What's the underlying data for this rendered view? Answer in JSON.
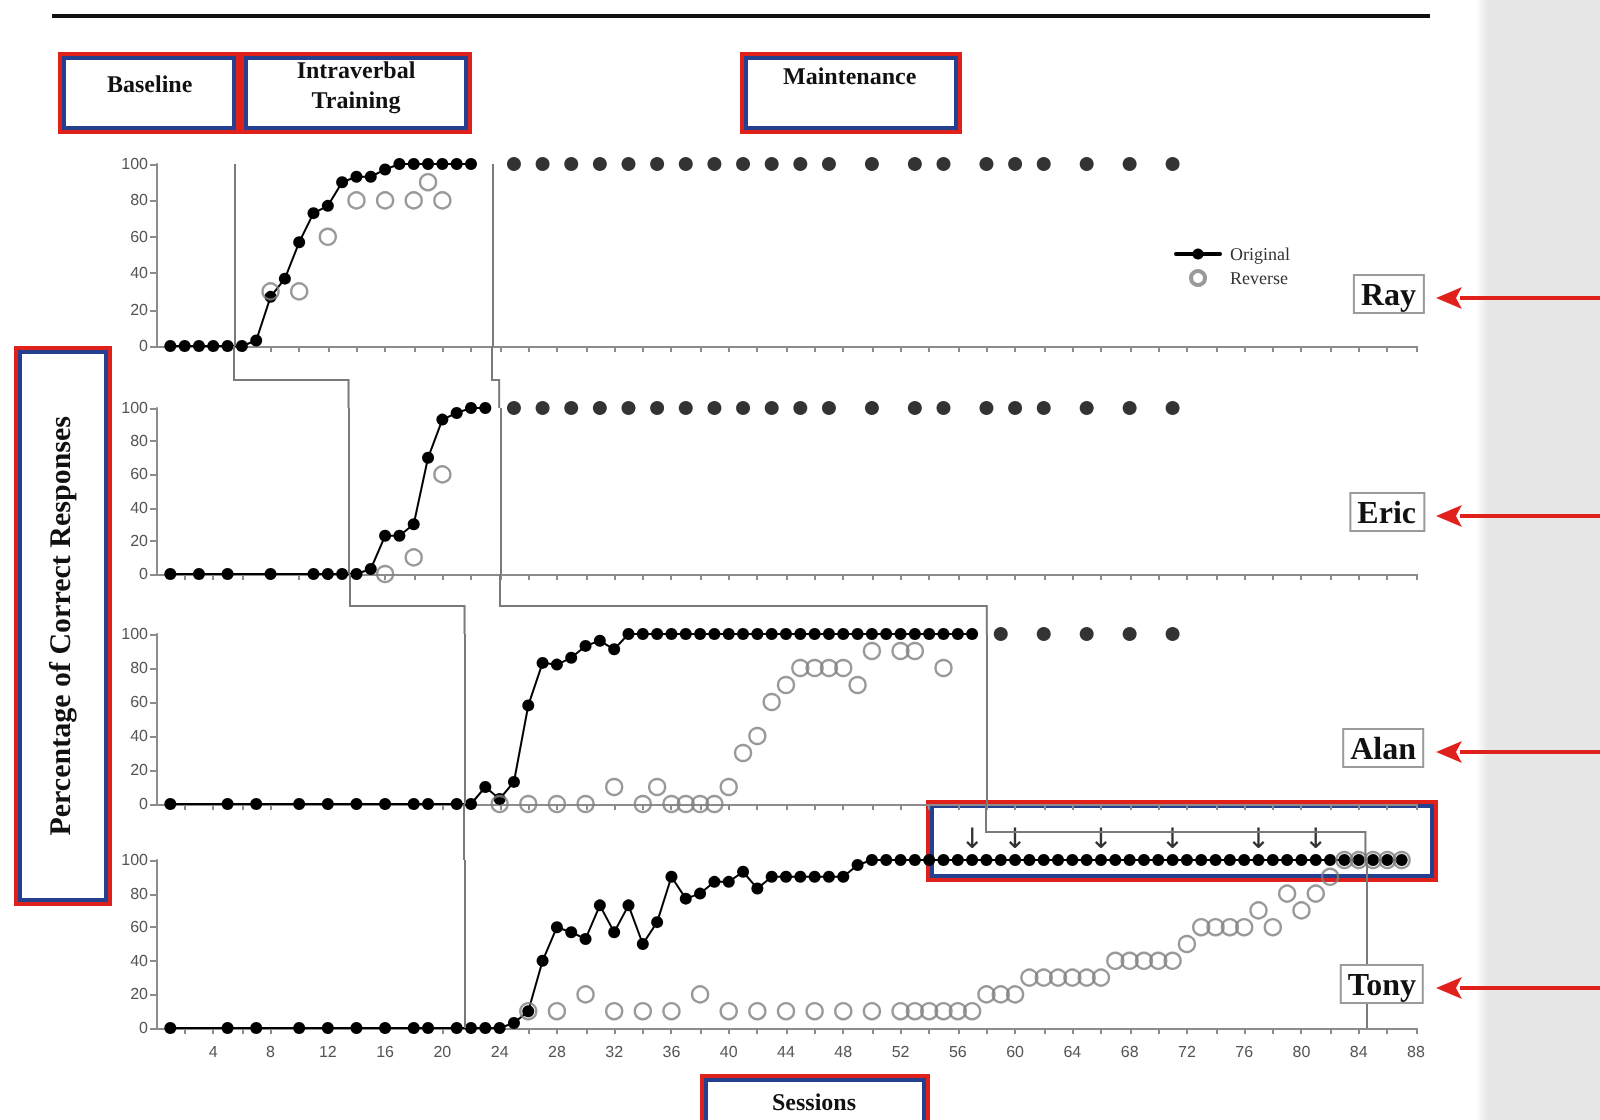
{
  "chart_data": [
    {
      "type": "line",
      "title": "Ray",
      "annotations": [
        "Baseline",
        "Intraverbal Training",
        "Maintenance"
      ],
      "legend": "right",
      "xlim": [
        0,
        88
      ],
      "xticks": [
        {
          "value": 2,
          "label": null
        },
        4,
        {
          "value": 6,
          "label": null
        },
        8,
        {
          "value": 10,
          "label": null
        },
        12,
        {
          "value": 14,
          "label": null
        },
        16,
        {
          "value": 18,
          "label": null
        },
        20,
        {
          "value": 22,
          "label": null
        },
        24,
        {
          "value": 26,
          "label": null
        },
        28,
        {
          "value": 30,
          "label": null
        },
        32,
        {
          "value": 34,
          "label": null
        },
        36,
        {
          "value": 38,
          "label": null
        },
        40,
        {
          "value": 42,
          "label": null
        },
        44,
        {
          "value": 46,
          "label": null
        },
        48,
        {
          "value": 50,
          "label": null
        },
        52,
        {
          "value": 54,
          "label": null
        },
        56,
        {
          "value": 58,
          "label": null
        },
        60,
        {
          "value": 62,
          "label": null
        },
        64,
        {
          "value": 66,
          "label": null
        },
        68,
        {
          "value": 70,
          "label": null
        },
        72,
        {
          "value": 74,
          "label": null
        },
        76,
        {
          "value": 78,
          "label": null
        },
        80,
        {
          "value": 82,
          "label": null
        },
        84,
        {
          "value": 86,
          "label": null
        },
        88
      ],
      "ylim": [
        0,
        100
      ],
      "yticks": [
        0,
        20,
        40,
        60,
        80,
        100
      ],
      "tick_labels": "y",
      "ref_lines": [
        {
          "axis": "x",
          "value": 5.5
        },
        {
          "axis": "x",
          "value": 23.5
        }
      ],
      "series": [
        {
          "name": "Original",
          "type": "line",
          "color": "#000000",
          "marker": "circle",
          "x": [
            1,
            2,
            3,
            4,
            5,
            6,
            7,
            8,
            9,
            10,
            11,
            12,
            13,
            14,
            15,
            16,
            17,
            18,
            19,
            20,
            21,
            22
          ],
          "values": [
            0,
            0,
            0,
            0,
            0,
            0,
            3,
            27,
            37,
            57,
            73,
            77,
            90,
            93,
            93,
            97,
            100,
            100,
            100,
            100,
            100,
            100
          ]
        },
        {
          "type": "scatter",
          "color": "#000000",
          "marker": "circle",
          "x": [
            25,
            27,
            29,
            31,
            33,
            35,
            37,
            39,
            41,
            43,
            45,
            47,
            50,
            53,
            55,
            58,
            60,
            62,
            65,
            68,
            71
          ],
          "values": [
            100,
            100,
            100,
            100,
            100,
            100,
            100,
            100,
            100,
            100,
            100,
            100,
            100,
            100,
            100,
            100,
            100,
            100,
            100,
            100,
            100
          ]
        },
        {
          "name": "Reverse",
          "type": "scatter",
          "color": "#808080",
          "marker": "open circle",
          "x": [
            8,
            10,
            12,
            14,
            16,
            18,
            19,
            20
          ],
          "values": [
            30,
            30,
            60,
            80,
            80,
            80,
            90,
            80
          ]
        }
      ]
    },
    {
      "type": "line",
      "title": "Eric",
      "ylabel": "Percentage of Correct Responses",
      "xlim": [
        0,
        88
      ],
      "xticks": [
        {
          "value": 2,
          "label": null
        },
        4,
        {
          "value": 6,
          "label": null
        },
        8,
        {
          "value": 10,
          "label": null
        },
        12,
        {
          "value": 14,
          "label": null
        },
        16,
        {
          "value": 18,
          "label": null
        },
        20,
        {
          "value": 22,
          "label": null
        },
        24,
        {
          "value": 26,
          "label": null
        },
        28,
        {
          "value": 30,
          "label": null
        },
        32,
        {
          "value": 34,
          "label": null
        },
        36,
        {
          "value": 38,
          "label": null
        },
        40,
        {
          "value": 42,
          "label": null
        },
        44,
        {
          "value": 46,
          "label": null
        },
        48,
        {
          "value": 50,
          "label": null
        },
        52,
        {
          "value": 54,
          "label": null
        },
        56,
        {
          "value": 58,
          "label": null
        },
        60,
        {
          "value": 62,
          "label": null
        },
        64,
        {
          "value": 66,
          "label": null
        },
        68,
        {
          "value": 70,
          "label": null
        },
        72,
        {
          "value": 74,
          "label": null
        },
        76,
        {
          "value": 78,
          "label": null
        },
        80,
        {
          "value": 82,
          "label": null
        },
        84,
        {
          "value": 86,
          "label": null
        },
        88
      ],
      "ylim": [
        0,
        100
      ],
      "yticks": [
        0,
        20,
        40,
        60,
        80,
        100
      ],
      "tick_labels": "y",
      "ref_lines": [
        {
          "axis": "x",
          "value": 13.5
        },
        {
          "axis": "x",
          "value": 24
        }
      ],
      "series": [
        {
          "type": "line",
          "color": "#000000",
          "marker": "circle",
          "x": [
            1,
            3,
            5,
            8,
            11,
            12,
            13,
            14,
            15,
            16,
            17,
            18,
            19,
            20,
            21,
            22,
            23
          ],
          "values": [
            0,
            0,
            0,
            0,
            0,
            0,
            0,
            0,
            3,
            23,
            23,
            30,
            70,
            93,
            97,
            100,
            100
          ]
        },
        {
          "type": "scatter",
          "color": "#000000",
          "marker": "circle",
          "x": [
            25,
            27,
            29,
            31,
            33,
            35,
            37,
            39,
            41,
            43,
            45,
            47,
            50,
            53,
            55,
            58,
            60,
            62,
            65,
            68,
            71
          ],
          "values": [
            100,
            100,
            100,
            100,
            100,
            100,
            100,
            100,
            100,
            100,
            100,
            100,
            100,
            100,
            100,
            100,
            100,
            100,
            100,
            100,
            100
          ]
        },
        {
          "type": "scatter",
          "color": "#808080",
          "marker": "open circle",
          "x": [
            16,
            18,
            20
          ],
          "values": [
            0,
            10,
            60
          ]
        }
      ]
    },
    {
      "type": "line",
      "title": "Alan",
      "xlim": [
        0,
        88
      ],
      "xticks": [
        {
          "value": 2,
          "label": null
        },
        4,
        {
          "value": 6,
          "label": null
        },
        8,
        {
          "value": 10,
          "label": null
        },
        12,
        {
          "value": 14,
          "label": null
        },
        16,
        {
          "value": 18,
          "label": null
        },
        20,
        {
          "value": 22,
          "label": null
        },
        24,
        {
          "value": 26,
          "label": null
        },
        28,
        {
          "value": 30,
          "label": null
        },
        32,
        {
          "value": 34,
          "label": null
        },
        36,
        {
          "value": 38,
          "label": null
        },
        40,
        {
          "value": 42,
          "label": null
        },
        44,
        {
          "value": 46,
          "label": null
        },
        48,
        {
          "value": 50,
          "label": null
        },
        52,
        {
          "value": 54,
          "label": null
        },
        56,
        {
          "value": 58,
          "label": null
        },
        60,
        {
          "value": 62,
          "label": null
        },
        64,
        {
          "value": 66,
          "label": null
        },
        68,
        {
          "value": 70,
          "label": null
        },
        72,
        {
          "value": 74,
          "label": null
        },
        76,
        {
          "value": 78,
          "label": null
        },
        80,
        {
          "value": 82,
          "label": null
        },
        84,
        {
          "value": 86,
          "label": null
        },
        88
      ],
      "ylim": [
        0,
        100
      ],
      "yticks": [
        0,
        20,
        40,
        60,
        80,
        100
      ],
      "tick_labels": "y",
      "ref_lines": [
        {
          "axis": "x",
          "value": 21.5
        },
        {
          "axis": "x",
          "value": 58
        }
      ],
      "series": [
        {
          "type": "line",
          "color": "#000000",
          "marker": "circle",
          "x": [
            1,
            5,
            7,
            10,
            12,
            14,
            16,
            18,
            19,
            21,
            22,
            23,
            24,
            25,
            26,
            27,
            28,
            29,
            30,
            31,
            32,
            33,
            34,
            35,
            36,
            37,
            38,
            39,
            40,
            41,
            42,
            43,
            44,
            45,
            46,
            47,
            48,
            49,
            50,
            51,
            52,
            53,
            54,
            55,
            56,
            57
          ],
          "values": [
            0,
            0,
            0,
            0,
            0,
            0,
            0,
            0,
            0,
            0,
            0,
            10,
            3,
            13,
            58,
            83,
            82,
            86,
            93,
            96,
            91,
            100,
            100,
            100,
            100,
            100,
            100,
            100,
            100,
            100,
            100,
            100,
            100,
            100,
            100,
            100,
            100,
            100,
            100,
            100,
            100,
            100,
            100,
            100,
            100,
            100
          ]
        },
        {
          "type": "scatter",
          "color": "#000000",
          "marker": "circle",
          "x": [
            59,
            62,
            65,
            68,
            71
          ],
          "values": [
            100,
            100,
            100,
            100,
            100
          ]
        },
        {
          "type": "scatter",
          "color": "#808080",
          "marker": "open circle",
          "x": [
            24,
            26,
            28,
            30,
            32,
            34,
            35,
            36,
            37,
            38,
            39,
            40,
            41,
            42,
            43,
            44,
            45,
            46,
            47,
            48,
            49,
            50,
            52,
            53,
            55
          ],
          "values": [
            0,
            0,
            0,
            0,
            10,
            0,
            10,
            0,
            0,
            0,
            0,
            10,
            30,
            40,
            60,
            70,
            80,
            80,
            80,
            80,
            70,
            90,
            90,
            90,
            80
          ]
        }
      ]
    },
    {
      "type": "line",
      "title": "Tony",
      "xlabel": "Sessions",
      "annotations": [
        {
          "text": "↓",
          "x": 57,
          "y": 100
        },
        {
          "text": "↓",
          "x": 60,
          "y": 100
        },
        {
          "text": "↓",
          "x": 66,
          "y": 100
        },
        {
          "text": "↓",
          "x": 71,
          "y": 100
        },
        {
          "text": "↓",
          "x": 77,
          "y": 100
        },
        {
          "text": "↓",
          "x": 81,
          "y": 100
        }
      ],
      "xlim": [
        0,
        88
      ],
      "xticks": [
        {
          "value": 2,
          "label": null
        },
        4,
        {
          "value": 6,
          "label": null
        },
        8,
        {
          "value": 10,
          "label": null
        },
        12,
        {
          "value": 14,
          "label": null
        },
        16,
        {
          "value": 18,
          "label": null
        },
        20,
        {
          "value": 22,
          "label": null
        },
        24,
        {
          "value": 26,
          "label": null
        },
        28,
        {
          "value": 30,
          "label": null
        },
        32,
        {
          "value": 34,
          "label": null
        },
        36,
        {
          "value": 38,
          "label": null
        },
        40,
        {
          "value": 42,
          "label": null
        },
        44,
        {
          "value": 46,
          "label": null
        },
        48,
        {
          "value": 50,
          "label": null
        },
        52,
        {
          "value": 54,
          "label": null
        },
        56,
        {
          "value": 58,
          "label": null
        },
        60,
        {
          "value": 62,
          "label": null
        },
        64,
        {
          "value": 66,
          "label": null
        },
        68,
        {
          "value": 70,
          "label": null
        },
        72,
        {
          "value": 74,
          "label": null
        },
        76,
        {
          "value": 78,
          "label": null
        },
        80,
        {
          "value": 82,
          "label": null
        },
        84,
        {
          "value": 86,
          "label": null
        },
        88
      ],
      "ylim": [
        0,
        100
      ],
      "yticks": [
        0,
        20,
        40,
        60,
        80,
        100
      ],
      "ref_lines": [
        {
          "axis": "x",
          "value": 21.5
        },
        {
          "axis": "x",
          "value": 84.5
        }
      ],
      "series": [
        {
          "type": "line",
          "color": "#000000",
          "marker": "circle",
          "x": [
            1,
            5,
            7,
            10,
            12,
            14,
            16,
            18,
            19,
            21,
            22,
            23,
            24,
            25,
            26,
            27,
            28,
            29,
            30,
            31,
            32,
            33,
            34,
            35,
            36,
            37,
            38,
            39,
            40,
            41,
            42,
            43,
            44,
            45,
            46,
            47,
            48,
            49,
            50,
            51,
            52,
            53,
            54,
            55,
            56,
            57,
            58,
            59,
            60,
            61,
            62,
            63,
            64,
            65,
            66,
            67,
            68,
            69,
            70,
            71,
            72,
            73,
            74,
            75,
            76,
            77,
            78,
            79,
            80,
            81,
            82,
            83,
            84,
            85,
            86,
            87
          ],
          "values": [
            0,
            0,
            0,
            0,
            0,
            0,
            0,
            0,
            0,
            0,
            0,
            0,
            0,
            3,
            10,
            40,
            60,
            57,
            53,
            73,
            57,
            73,
            50,
            63,
            90,
            77,
            80,
            87,
            87,
            93,
            83,
            90,
            90,
            90,
            90,
            90,
            90,
            97,
            100,
            100,
            100,
            100,
            100,
            100,
            100,
            100,
            100,
            100,
            100,
            100,
            100,
            100,
            100,
            100,
            100,
            100,
            100,
            100,
            100,
            100,
            100,
            100,
            100,
            100,
            100,
            100,
            100,
            100,
            100,
            100,
            100,
            100,
            100,
            100,
            100,
            100
          ]
        },
        {
          "type": "scatter",
          "color": "#808080",
          "marker": "open circle",
          "x": [
            26,
            28,
            30,
            32,
            34,
            36,
            38,
            40,
            42,
            44,
            46,
            48,
            50,
            52,
            53,
            54,
            55,
            56,
            57,
            58,
            59,
            60,
            61,
            62,
            63,
            64,
            65,
            66,
            67,
            68,
            69,
            70,
            71,
            72,
            73,
            74,
            75,
            76,
            77,
            78,
            79,
            80,
            81,
            82,
            83,
            84,
            85,
            86,
            87
          ],
          "values": [
            10,
            10,
            20,
            10,
            10,
            10,
            20,
            10,
            10,
            10,
            10,
            10,
            10,
            10,
            10,
            10,
            10,
            10,
            10,
            20,
            20,
            20,
            30,
            30,
            30,
            30,
            30,
            30,
            40,
            40,
            40,
            40,
            40,
            50,
            60,
            60,
            60,
            60,
            70,
            60,
            80,
            70,
            80,
            90,
            100,
            100,
            100,
            100,
            100
          ]
        }
      ]
    }
  ]
}
